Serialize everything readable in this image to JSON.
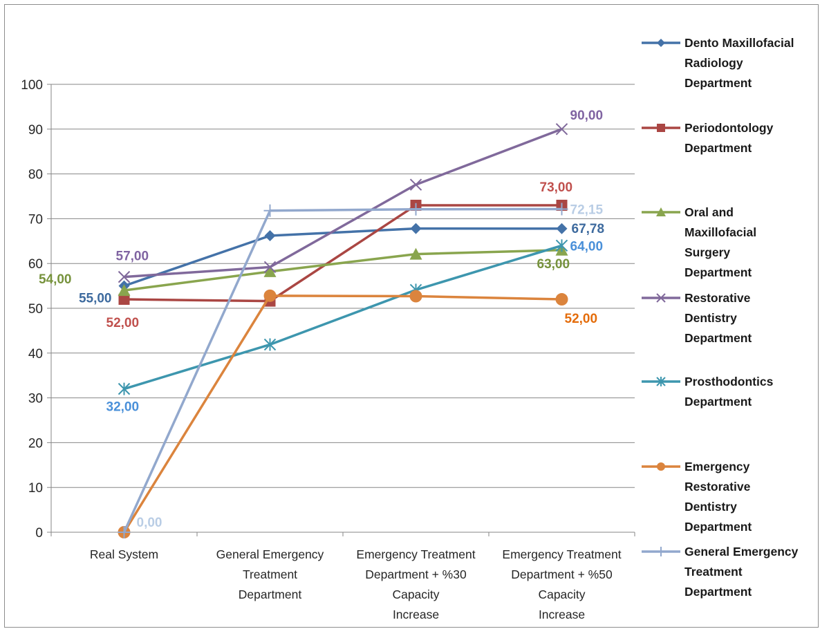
{
  "chart_data": {
    "type": "line",
    "title": "",
    "xlabel": "",
    "ylabel": "",
    "ylim": [
      0,
      100
    ],
    "yticks": [
      "0",
      "10",
      "20",
      "30",
      "40",
      "50",
      "60",
      "70",
      "80",
      "90",
      "100"
    ],
    "grid": true,
    "legend_position": "right",
    "categories": [
      [
        "Real System"
      ],
      [
        "General Emergency",
        "Treatment",
        "Department"
      ],
      [
        "Emergency Treatment",
        "Department + %30",
        "Capacity",
        "Increase"
      ],
      [
        "Emergency Treatment",
        "Department + %50",
        "Capacity",
        "Increase"
      ]
    ],
    "series": [
      {
        "name": "Dento Maxillofacial Radiology Department",
        "legend_lines": [
          "Dento Maxillofacial",
          "Radiology",
          "Department"
        ],
        "color": "#4472A8",
        "label_color": "#3D6A9E",
        "marker": "diamond",
        "values": [
          55.0,
          66.2,
          67.8,
          67.78
        ],
        "labels": [
          "55,00",
          "",
          "",
          "67,78"
        ]
      },
      {
        "name": "Periodontology Department",
        "legend_lines": [
          "Periodontology",
          "Department"
        ],
        "color": "#AA4643",
        "label_color": "#C0504D",
        "marker": "square",
        "values": [
          52.0,
          51.6,
          73.0,
          73.0
        ],
        "labels": [
          "52,00",
          "",
          "",
          "73,00"
        ]
      },
      {
        "name": "Oral and Maxillofacial Surgery Department",
        "legend_lines": [
          "Oral and",
          "Maxillofacial",
          "Surgery",
          "Department"
        ],
        "color": "#89A54E",
        "label_color": "#76923C",
        "marker": "triangle",
        "values": [
          54.0,
          58.2,
          62.1,
          63.0
        ],
        "labels": [
          "54,00",
          "",
          "",
          "63,00"
        ]
      },
      {
        "name": "Restorative Dentistry Department",
        "legend_lines": [
          "Restorative",
          "Dentistry",
          "Department"
        ],
        "color": "#80699B",
        "label_color": "#8064A2",
        "marker": "x",
        "values": [
          57.0,
          59.2,
          77.6,
          90.0
        ],
        "labels": [
          "57,00",
          "",
          "",
          "90,00"
        ]
      },
      {
        "name": "Prosthodontics Department",
        "legend_lines": [
          "Prosthodontics",
          "Department"
        ],
        "color": "#3D96AE",
        "label_color": "#4A90D9",
        "marker": "star",
        "values": [
          32.0,
          41.9,
          54.1,
          64.0
        ],
        "labels": [
          "32,00",
          "",
          "",
          "64,00"
        ]
      },
      {
        "name": "Emergency Restorative Dentistry Department",
        "legend_lines": [
          "Emergency",
          "Restorative",
          "Dentistry",
          "Department"
        ],
        "color": "#DB843D",
        "label_color": "#E46C0A",
        "marker": "circle",
        "values": [
          0.0,
          52.8,
          52.7,
          52.0
        ],
        "labels": [
          "",
          "",
          "",
          "52,00"
        ]
      },
      {
        "name": "General Emergency Treatment Department",
        "legend_lines": [
          "General Emergency",
          "Treatment",
          "Department"
        ],
        "color": "#92A8CD",
        "label_color": "#B9CDE5",
        "marker": "plus",
        "values": [
          0.0,
          71.8,
          72.1,
          72.15
        ],
        "labels": [
          "0,00",
          "",
          "",
          "72,15"
        ]
      }
    ]
  }
}
